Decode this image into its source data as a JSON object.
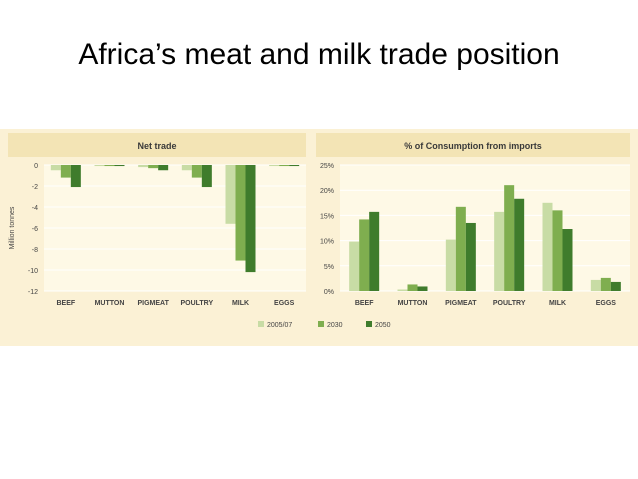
{
  "slide": {
    "title": "Africa’s meat and milk trade position"
  },
  "colors": {
    "panel_bg": "#fbf1d5",
    "plot_bg": "#fef9e6",
    "title_bg": "#f3e4b5",
    "grid": "#ffffff",
    "series": [
      "#c8dca5",
      "#7fae4f",
      "#3f7c2c"
    ]
  },
  "legend": [
    "2005/07",
    "2030",
    "2050"
  ],
  "chart_data": [
    {
      "type": "bar",
      "title": "Net trade",
      "ylabel": "Million tonnes",
      "xlabel": "",
      "categories": [
        "BEEF",
        "MUTTON",
        "PIGMEAT",
        "POULTRY",
        "MILK",
        "EGGS"
      ],
      "yticks": [
        0,
        -2,
        -4,
        -6,
        -8,
        -10,
        -12
      ],
      "ylim": [
        -12,
        0
      ],
      "grid": true,
      "series": [
        {
          "name": "2005/07",
          "values": [
            -0.5,
            -0.1,
            -0.2,
            -0.5,
            -5.6,
            -0.1
          ]
        },
        {
          "name": "2030",
          "values": [
            -1.2,
            -0.1,
            -0.3,
            -1.2,
            -9.1,
            -0.1
          ]
        },
        {
          "name": "2050",
          "values": [
            -2.1,
            -0.1,
            -0.5,
            -2.1,
            -10.2,
            -0.1
          ]
        }
      ]
    },
    {
      "type": "bar",
      "title": "% of Consumption from imports",
      "ylabel": "",
      "xlabel": "",
      "categories": [
        "BEEF",
        "MUTTON",
        "PIGMEAT",
        "POULTRY",
        "MILK",
        "EGGS"
      ],
      "yticks": [
        "0%",
        "5%",
        "10%",
        "15%",
        "20%",
        "25%"
      ],
      "ylim": [
        0,
        25
      ],
      "grid": true,
      "series": [
        {
          "name": "2005/07",
          "values": [
            9.8,
            0.3,
            10.2,
            15.7,
            17.5,
            2.2
          ]
        },
        {
          "name": "2030",
          "values": [
            14.2,
            1.3,
            16.7,
            21.0,
            16.0,
            2.6
          ]
        },
        {
          "name": "2050",
          "values": [
            15.7,
            0.9,
            13.5,
            18.3,
            12.3,
            1.8
          ]
        }
      ]
    }
  ]
}
